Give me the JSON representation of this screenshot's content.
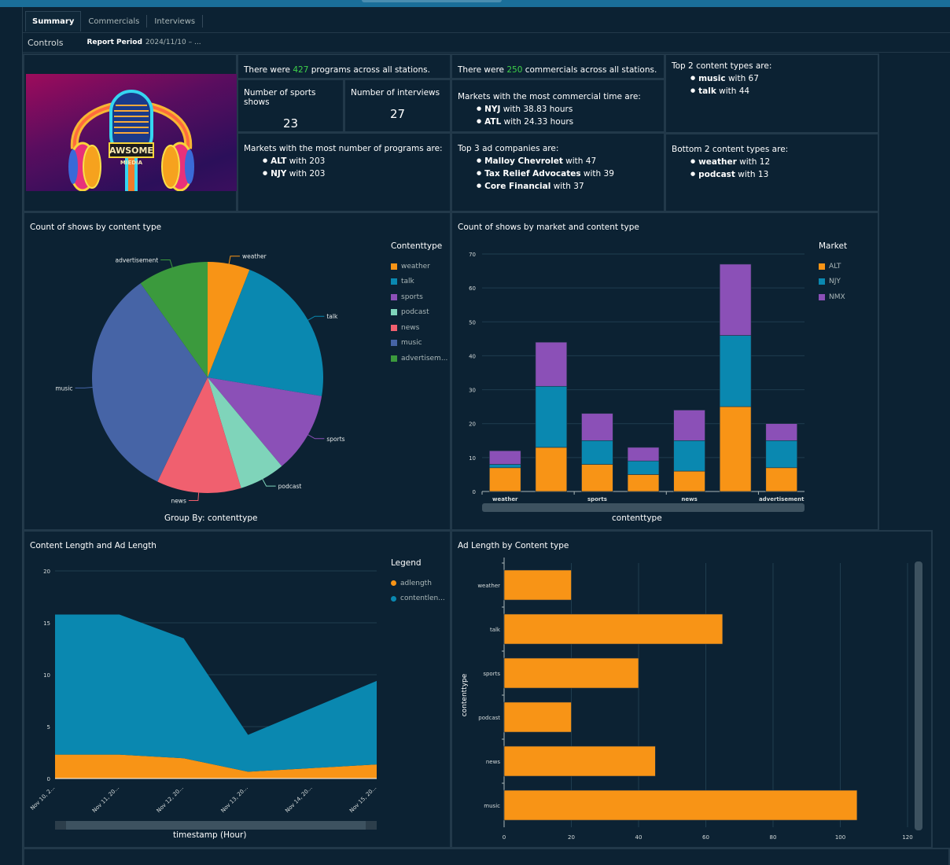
{
  "tabs": [
    {
      "label": "Summary",
      "active": true
    },
    {
      "label": "Commercials",
      "active": false
    },
    {
      "label": "Interviews",
      "active": false
    }
  ],
  "controls": {
    "label": "Controls",
    "report_period_label": "Report Period",
    "report_period_value": "2024/11/10 – ..."
  },
  "logo": {
    "line1": "AWSOME",
    "line2": "MIEDIA"
  },
  "kpis": {
    "programs": {
      "prefix": "There were ",
      "value": "427",
      "suffix": " programs across all stations."
    },
    "commercials": {
      "prefix": "There were ",
      "value": "250",
      "suffix": " commercials across all stations."
    },
    "sports_shows": {
      "label": "Number of sports shows",
      "value": "23"
    },
    "interviews": {
      "label": "Number of interviews",
      "value": "27"
    },
    "commercial_time": {
      "title": "Markets with the most commercial time are:",
      "items": [
        {
          "name": "NYJ",
          "text": " with 38.83 hours"
        },
        {
          "name": "ATL",
          "text": " with 24.33 hours"
        }
      ]
    },
    "top_content": {
      "title": "Top 2 content types are:",
      "items": [
        {
          "name": "music",
          "text": " with 67"
        },
        {
          "name": "talk",
          "text": " with 44"
        }
      ]
    },
    "top_markets": {
      "title": "Markets with the most number of programs are:",
      "items": [
        {
          "name": "ALT",
          "text": " with 203"
        },
        {
          "name": "NJY",
          "text": " with 203"
        }
      ]
    },
    "top_ad_companies": {
      "title": "Top 3 ad companies are:",
      "items": [
        {
          "name": "Malloy Chevrolet",
          "text": " with 47"
        },
        {
          "name": "Tax Relief Advocates",
          "text": " with 39"
        },
        {
          "name": "Core Financial",
          "text": " with 37"
        }
      ]
    },
    "bottom_content": {
      "title": "Bottom 2 content types are:",
      "items": [
        {
          "name": "weather",
          "text": " with 12"
        },
        {
          "name": "podcast",
          "text": " with 13"
        }
      ]
    }
  },
  "colors": {
    "green_highlight": "#3fd24a",
    "orange": "#f89416",
    "teal": "#0a88b0",
    "purple": "#8b50b7",
    "mint": "#7fd4ba",
    "red": "#f0606f",
    "blue": "#4664a6",
    "green": "#3b9a3d"
  },
  "chart_data": [
    {
      "type": "pie",
      "title": "Count of shows by content type",
      "xlabel": "Group By: contenttype",
      "legend_title": "Contenttype",
      "legend_placement": "right",
      "categories": [
        "weather",
        "talk",
        "sports",
        "podcast",
        "news",
        "music",
        "advertisement"
      ],
      "legend_labels": [
        "weather",
        "talk",
        "sports",
        "podcast",
        "news",
        "music",
        "advertisem..."
      ],
      "values": [
        12,
        44,
        23,
        13,
        24,
        67,
        20
      ],
      "colors": [
        "#f89416",
        "#0a88b0",
        "#8b50b7",
        "#7fd4ba",
        "#f0606f",
        "#4664a6",
        "#3b9a3d"
      ]
    },
    {
      "type": "bar",
      "stacked": true,
      "title": "Count of shows by market and content type",
      "xlabel": "contenttype",
      "ylabel": "",
      "legend_title": "Market",
      "legend_placement": "right",
      "categories": [
        "weather",
        "talk",
        "sports",
        "podcast",
        "news",
        "music",
        "advertisement"
      ],
      "tick_labels": [
        "weather",
        "sports",
        "news",
        "advertisement"
      ],
      "yticks": [
        0,
        10,
        20,
        30,
        40,
        50,
        60,
        70
      ],
      "ylim": [
        0,
        70
      ],
      "series": [
        {
          "name": "ALT",
          "color": "#f89416",
          "values": [
            7,
            13,
            8,
            5,
            6,
            25,
            7
          ]
        },
        {
          "name": "NJY",
          "color": "#0a88b0",
          "values": [
            1,
            18,
            7,
            4,
            9,
            21,
            8
          ]
        },
        {
          "name": "NMX",
          "color": "#8b50b7",
          "values": [
            4,
            13,
            8,
            4,
            9,
            21,
            5
          ]
        }
      ]
    },
    {
      "type": "area",
      "stacked": true,
      "title": "Content Length and Ad Length",
      "xlabel": "timestamp (Hour)",
      "legend_title": "Legend",
      "legend_placement": "right",
      "x": [
        "Nov 10, 2...",
        "Nov 11, 20...",
        "Nov 12, 20...",
        "Nov 13, 20...",
        "Nov 14, 20...",
        "Nov 15, 20..."
      ],
      "yticks": [
        0,
        5,
        10,
        15,
        20
      ],
      "ylim": [
        0,
        20
      ],
      "series": [
        {
          "name": "adlength",
          "legend_label": "adlength",
          "color": "#f89416",
          "values": [
            2.3,
            2.3,
            1.95,
            0.65,
            1.0,
            1.35
          ]
        },
        {
          "name": "contentlength",
          "legend_label": "contentlen...",
          "color": "#0a88b0",
          "values": [
            13.5,
            13.5,
            11.55,
            3.55,
            5.8,
            8.05
          ]
        }
      ]
    },
    {
      "type": "bar",
      "orientation": "horizontal",
      "title": "Ad Length by Content type",
      "ylabel": "contenttype",
      "xlabel": "",
      "categories": [
        "weather",
        "talk",
        "sports",
        "podcast",
        "news",
        "music"
      ],
      "values": [
        20,
        65,
        40,
        20,
        45,
        105
      ],
      "xticks": [
        0,
        20,
        40,
        60,
        80,
        100,
        120
      ],
      "xlim": [
        0,
        120
      ],
      "color": "#f89416"
    }
  ]
}
